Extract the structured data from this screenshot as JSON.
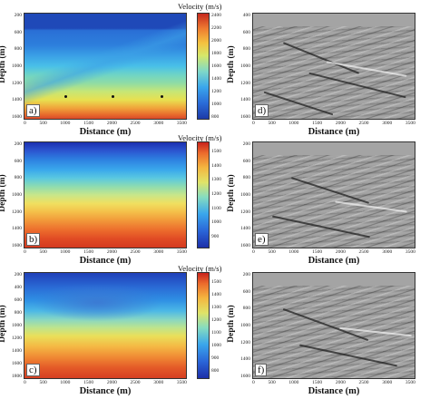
{
  "common": {
    "x_axis_label": "Distance  (m)",
    "y_axis_label": "Depth  (m)",
    "x_ticks": [
      "0",
      "500",
      "1000",
      "1500",
      "2000",
      "2500",
      "3000",
      "3500"
    ],
    "y_ticks": [
      "200",
      "400",
      "600",
      "800",
      "1000",
      "1200",
      "1400",
      "1600",
      "1800"
    ]
  },
  "panels": {
    "a": {
      "letter": "a)",
      "colorbar_title": "Velocity (m/s)",
      "colorbar_ticks": [
        "2400",
        "2200",
        "2000",
        "1800",
        "1600",
        "1400",
        "1200",
        "1000",
        "800"
      ]
    },
    "b": {
      "letter": "b)",
      "colorbar_title": "Velocity (m/s)",
      "colorbar_ticks": [
        "1500",
        "1400",
        "1300",
        "1200",
        "1100",
        "1000",
        "900"
      ]
    },
    "c": {
      "letter": "c)",
      "colorbar_title": "Velocity (m/s)",
      "colorbar_ticks": [
        "1500",
        "1400",
        "1300",
        "1200",
        "1100",
        "1000",
        "900",
        "800"
      ]
    },
    "d": {
      "letter": "d)",
      "x_ticks": [
        "0",
        "500",
        "1000",
        "1500",
        "2000",
        "2500",
        "3000",
        "3500"
      ]
    },
    "e": {
      "letter": "e)",
      "x_ticks": [
        "0",
        "500",
        "1000",
        "1500",
        "2000",
        "2500",
        "3000",
        "3500"
      ]
    },
    "f": {
      "letter": "f)",
      "x_ticks": [
        "0",
        "500",
        "1000",
        "1500",
        "2000",
        "2500",
        "3000",
        "3500"
      ]
    }
  }
}
